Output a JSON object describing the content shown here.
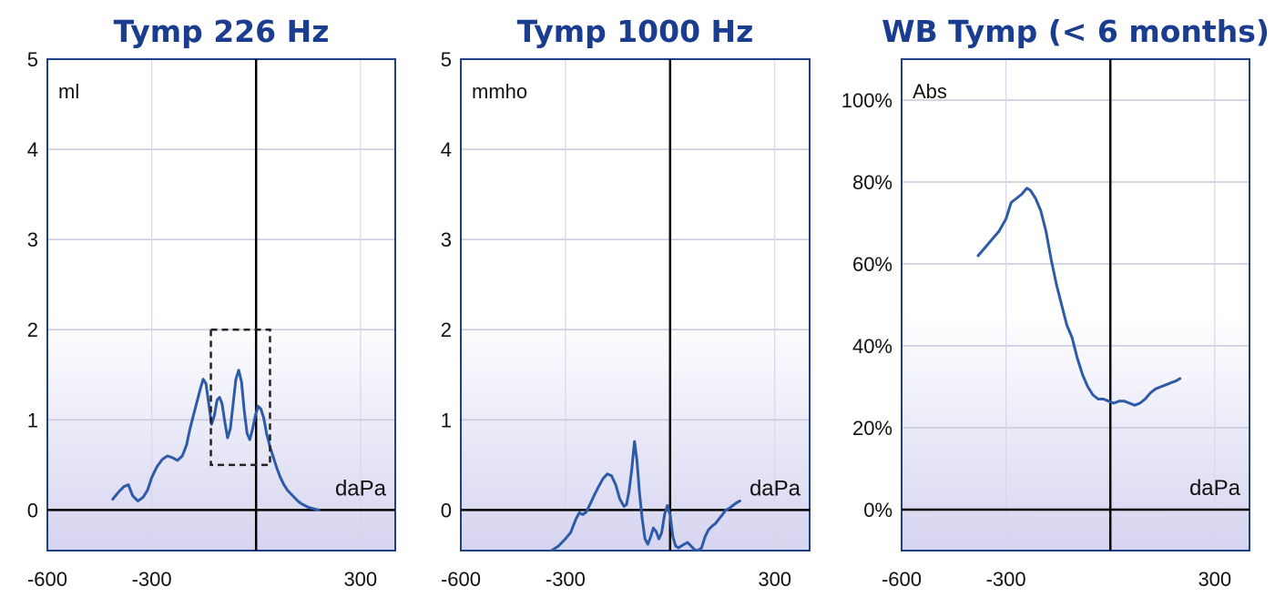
{
  "chart_data": [
    {
      "type": "line",
      "title": "Tymp 226 Hz",
      "unit_label": "ml",
      "xlabel": "daPa",
      "xlim": [
        -600,
        400
      ],
      "ylim": [
        -0.45,
        5
      ],
      "x_ticks": [
        -600,
        -300,
        300
      ],
      "y_ticks": [
        0,
        1,
        2,
        3,
        4,
        5
      ],
      "x_tick_labels": [
        "-600",
        "-300",
        "300"
      ],
      "y_tick_labels": [
        "0",
        "1",
        "2",
        "3",
        "4",
        "5"
      ],
      "grid": true,
      "zero_line": true,
      "vertical_marker_x": 0,
      "series": [
        {
          "x": [
            -412,
            -395,
            -380,
            -367,
            -355,
            -340,
            -325,
            -312,
            -300,
            -285,
            -270,
            -255,
            -240,
            -226,
            -212,
            -200,
            -190,
            -180,
            -170,
            -160,
            -152,
            -144,
            -136,
            -128,
            -120,
            -112,
            -105,
            -98,
            -90,
            -82,
            -74,
            -66,
            -58,
            -50,
            -42,
            -34,
            -26,
            -18,
            -10,
            -2,
            6,
            14,
            22,
            30,
            40,
            50,
            60,
            70,
            80,
            90,
            100,
            110,
            120,
            130,
            140,
            150,
            160,
            170,
            180
          ],
          "y": [
            0.12,
            0.2,
            0.26,
            0.28,
            0.16,
            0.1,
            0.14,
            0.22,
            0.36,
            0.48,
            0.56,
            0.6,
            0.58,
            0.55,
            0.6,
            0.72,
            0.9,
            1.05,
            1.2,
            1.35,
            1.45,
            1.4,
            1.18,
            0.95,
            1.05,
            1.22,
            1.25,
            1.18,
            0.98,
            0.8,
            0.9,
            1.18,
            1.45,
            1.55,
            1.42,
            1.1,
            0.85,
            0.78,
            0.9,
            1.05,
            1.15,
            1.12,
            1.02,
            0.85,
            0.7,
            0.58,
            0.46,
            0.36,
            0.28,
            0.22,
            0.18,
            0.14,
            0.1,
            0.07,
            0.05,
            0.03,
            0.02,
            0.01,
            0.0
          ]
        }
      ],
      "annotation_box": {
        "x": [
          -130,
          40
        ],
        "y": [
          0.5,
          2.0
        ]
      }
    },
    {
      "type": "line",
      "title": "Tymp 1000 Hz",
      "unit_label": "mmho",
      "xlabel": "daPa",
      "xlim": [
        -600,
        400
      ],
      "ylim": [
        -0.45,
        5
      ],
      "x_ticks": [
        -600,
        -300,
        300
      ],
      "y_ticks": [
        0,
        1,
        2,
        3,
        4,
        5
      ],
      "x_tick_labels": [
        "-600",
        "-300",
        "300"
      ],
      "y_tick_labels": [
        "0",
        "1",
        "2",
        "3",
        "4",
        "5"
      ],
      "grid": true,
      "zero_line": true,
      "vertical_marker_x": 0,
      "series": [
        {
          "x": [
            -340,
            -320,
            -300,
            -285,
            -270,
            -260,
            -250,
            -240,
            -230,
            -218,
            -205,
            -192,
            -180,
            -168,
            -156,
            -144,
            -132,
            -125,
            -118,
            -110,
            -102,
            -95,
            -88,
            -80,
            -72,
            -64,
            -56,
            -48,
            -40,
            -32,
            -24,
            -16,
            -8,
            0,
            8,
            16,
            24,
            32,
            40,
            50,
            60,
            70,
            80,
            90,
            100,
            110,
            120,
            130,
            140,
            150,
            160,
            170,
            180,
            190,
            200
          ],
          "y": [
            -0.45,
            -0.4,
            -0.32,
            -0.25,
            -0.1,
            -0.03,
            -0.05,
            -0.02,
            0.06,
            0.16,
            0.26,
            0.35,
            0.4,
            0.38,
            0.28,
            0.12,
            0.04,
            0.06,
            0.2,
            0.45,
            0.76,
            0.55,
            0.2,
            -0.1,
            -0.32,
            -0.38,
            -0.3,
            -0.2,
            -0.24,
            -0.32,
            -0.25,
            -0.05,
            0.05,
            -0.05,
            -0.3,
            -0.4,
            -0.42,
            -0.4,
            -0.38,
            -0.36,
            -0.4,
            -0.44,
            -0.45,
            -0.42,
            -0.3,
            -0.22,
            -0.18,
            -0.15,
            -0.1,
            -0.05,
            0.0,
            0.02,
            0.05,
            0.08,
            0.1
          ]
        }
      ]
    },
    {
      "type": "line",
      "title": "WB Tymp (< 6 months)",
      "unit_label": "Abs",
      "xlabel": "daPa",
      "xlim": [
        -600,
        400
      ],
      "ylim": [
        -0.1,
        1.1
      ],
      "x_ticks": [
        -600,
        -300,
        300
      ],
      "y_ticks": [
        0,
        0.2,
        0.4,
        0.6,
        0.8,
        1.0
      ],
      "x_tick_labels": [
        "-600",
        "-300",
        "300"
      ],
      "y_tick_labels": [
        "0%",
        "20%",
        "40%",
        "60%",
        "80%",
        "100%"
      ],
      "grid": true,
      "zero_line": true,
      "vertical_marker_x": 0,
      "series": [
        {
          "x": [
            -380,
            -360,
            -340,
            -320,
            -300,
            -285,
            -270,
            -255,
            -240,
            -230,
            -215,
            -200,
            -185,
            -170,
            -155,
            -140,
            -125,
            -110,
            -95,
            -80,
            -65,
            -50,
            -35,
            -20,
            -5,
            10,
            25,
            40,
            55,
            70,
            85,
            100,
            115,
            130,
            145,
            160,
            175,
            190,
            200
          ],
          "y": [
            0.62,
            0.64,
            0.66,
            0.68,
            0.71,
            0.75,
            0.76,
            0.77,
            0.785,
            0.78,
            0.76,
            0.73,
            0.68,
            0.61,
            0.55,
            0.5,
            0.45,
            0.42,
            0.37,
            0.33,
            0.3,
            0.28,
            0.27,
            0.27,
            0.265,
            0.26,
            0.265,
            0.265,
            0.26,
            0.255,
            0.26,
            0.27,
            0.285,
            0.295,
            0.3,
            0.305,
            0.31,
            0.315,
            0.32
          ]
        }
      ]
    }
  ]
}
